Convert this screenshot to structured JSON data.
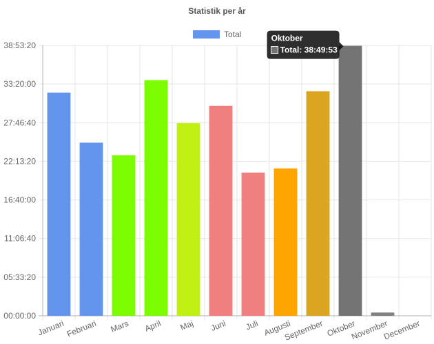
{
  "chart_data": {
    "type": "bar",
    "title": "Statistik per år",
    "legend": {
      "label": "Total",
      "color": "#6495ED",
      "placement": "top-center"
    },
    "categories": [
      "Januari",
      "Februari",
      "Mars",
      "April",
      "Maj",
      "Juni",
      "Juli",
      "Augusti",
      "September",
      "Oktober",
      "November",
      "December"
    ],
    "values_seconds": [
      115560,
      89640,
      83160,
      122040,
      99720,
      108720,
      74160,
      76320,
      116280,
      139793,
      1680,
      0
    ],
    "colors": [
      "#6495ED",
      "#6495ED",
      "#7CFC00",
      "#7CFC00",
      "#BFF012",
      "#F08080",
      "#F08080",
      "#FFA500",
      "#DAA520",
      "#737373",
      "#808080",
      "#808080"
    ],
    "y_ticks": [
      "00:00:00",
      "05:33:20",
      "11:06:40",
      "16:40:00",
      "22:13:20",
      "27:46:40",
      "33:20:00",
      "38:53:20"
    ],
    "y_tick_values_seconds": [
      0,
      20000,
      40000,
      60000,
      80000,
      100000,
      120000,
      140000
    ],
    "ylim_seconds": [
      0,
      140000
    ],
    "grid": true
  },
  "tooltip": {
    "title": "Oktober",
    "label": "Total: 38:49:53",
    "swatch_color": "#737373",
    "category_index": 9
  }
}
